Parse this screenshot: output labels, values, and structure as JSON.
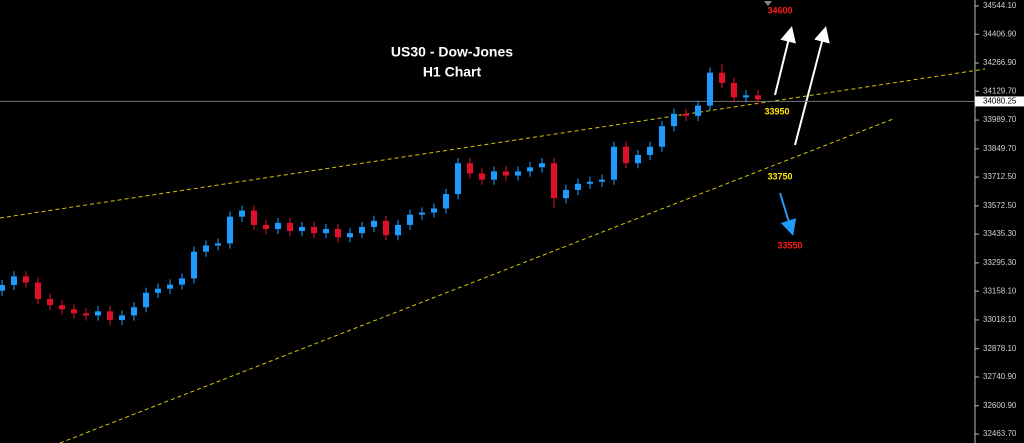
{
  "chart_data": {
    "type": "candlestick",
    "title": "US30 - Dow-Jones",
    "subtitle": "H1 Chart",
    "up_color": "#1e9bff",
    "down_color": "#e0102a",
    "ylim": [
      32463.7,
      34544.1
    ],
    "yticks": [
      {
        "value": 34544.1,
        "label": "34544.10"
      },
      {
        "value": 34406.9,
        "label": "34406.90"
      },
      {
        "value": 34266.9,
        "label": "34266.90"
      },
      {
        "value": 34129.7,
        "label": "34129.70"
      },
      {
        "value": 33989.7,
        "label": "33989.70"
      },
      {
        "value": 33849.7,
        "label": "33849.70"
      },
      {
        "value": 33712.5,
        "label": "33712.50"
      },
      {
        "value": 33572.5,
        "label": "33572.50"
      },
      {
        "value": 33435.3,
        "label": "33435.30"
      },
      {
        "value": 33295.3,
        "label": "33295.30"
      },
      {
        "value": 33158.1,
        "label": "33158.10"
      },
      {
        "value": 33018.1,
        "label": "33018.10"
      },
      {
        "value": 32878.1,
        "label": "32878.10"
      },
      {
        "value": 32740.9,
        "label": "32740.90"
      },
      {
        "value": 32600.9,
        "label": "32600.90"
      },
      {
        "value": 32463.7,
        "label": "32463.70"
      }
    ],
    "current_price": {
      "value": 34080.25,
      "label": "34080.25"
    },
    "open": [
      33160,
      33188,
      33230,
      33200,
      33120,
      33090,
      33070,
      33050,
      33040,
      33060,
      33018,
      33040,
      33080,
      33150,
      33170,
      33190,
      33220,
      33350,
      33380,
      33390,
      33520,
      33550,
      33480,
      33460,
      33490,
      33450,
      33470,
      33440,
      33460,
      33420,
      33440,
      33470,
      33500,
      33430,
      33480,
      33530,
      33540,
      33560,
      33630,
      33780,
      33730,
      33700,
      33740,
      33720,
      33740,
      33760,
      33780,
      33610,
      33650,
      33680,
      33690,
      33700,
      33860,
      33780,
      33820,
      33860,
      33960,
      34020,
      34010,
      34060,
      34220,
      34170,
      34100,
      34110
    ],
    "high": [
      33213,
      33255,
      33255,
      33225,
      33145,
      33115,
      33095,
      33075,
      33085,
      33085,
      33065,
      33105,
      33175,
      33195,
      33215,
      33245,
      33375,
      33405,
      33415,
      33545,
      33575,
      33575,
      33505,
      33515,
      33515,
      33495,
      33495,
      33485,
      33485,
      33465,
      33495,
      33525,
      33525,
      33505,
      33555,
      33565,
      33585,
      33655,
      33805,
      33805,
      33755,
      33765,
      33765,
      33765,
      33785,
      33805,
      33805,
      33675,
      33705,
      33715,
      33725,
      33885,
      33885,
      33845,
      33885,
      33985,
      34045,
      34045,
      34085,
      34245,
      34260,
      34195,
      34135,
      34135
    ],
    "low": [
      33135,
      33163,
      33175,
      33095,
      33065,
      33045,
      33025,
      33015,
      33015,
      32993,
      32993,
      33015,
      33055,
      33125,
      33145,
      33165,
      33195,
      33325,
      33355,
      33365,
      33495,
      33455,
      33435,
      33435,
      33425,
      33425,
      33415,
      33415,
      33395,
      33395,
      33415,
      33445,
      33405,
      33405,
      33455,
      33505,
      33515,
      33535,
      33605,
      33705,
      33675,
      33675,
      33695,
      33695,
      33715,
      33735,
      33560,
      33585,
      33625,
      33655,
      33665,
      33675,
      33755,
      33755,
      33795,
      33835,
      33935,
      33985,
      33985,
      34035,
      34145,
      34075,
      34075,
      34065
    ],
    "close": [
      33188,
      33230,
      33200,
      33120,
      33090,
      33070,
      33050,
      33040,
      33060,
      33018,
      33040,
      33080,
      33150,
      33170,
      33190,
      33220,
      33350,
      33380,
      33390,
      33520,
      33550,
      33480,
      33460,
      33490,
      33450,
      33470,
      33440,
      33460,
      33420,
      33440,
      33470,
      33500,
      33430,
      33480,
      33530,
      33540,
      33560,
      33630,
      33780,
      33730,
      33700,
      33740,
      33720,
      33740,
      33760,
      33780,
      33610,
      33650,
      33680,
      33690,
      33700,
      33860,
      33780,
      33820,
      33860,
      33960,
      34020,
      34010,
      34060,
      34220,
      34170,
      34100,
      34110,
      34090
    ],
    "annotations": [
      {
        "text": "34600",
        "color": "#ff1a1a"
      },
      {
        "text": "33950",
        "color": "#ffe600"
      },
      {
        "text": "33750",
        "color": "#ffe600"
      },
      {
        "text": "33550",
        "color": "#ff1a1a"
      }
    ]
  }
}
